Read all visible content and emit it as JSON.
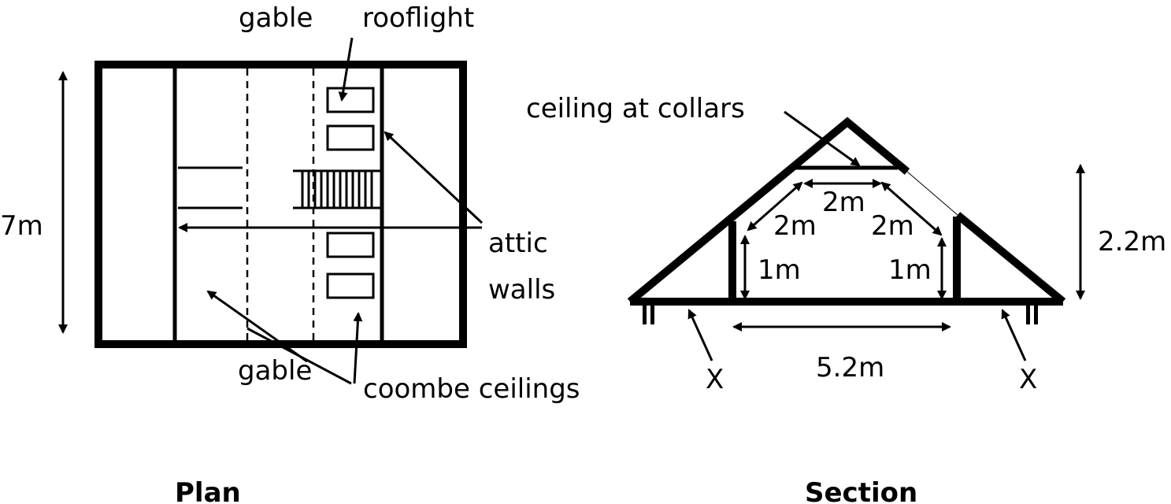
{
  "plan": {
    "title": "Plan",
    "label_gable_top": "gable",
    "label_rooflight": "rooflight",
    "label_width": "7m",
    "label_attic": "attic",
    "label_walls": "walls",
    "label_gable_bottom": "gable",
    "label_coombe": "coombe ceilings"
  },
  "section": {
    "title": "Section",
    "label_ceiling": "ceiling at collars",
    "label_collar_width": "2m",
    "label_left_slope": "2m",
    "label_right_slope": "2m",
    "label_left_wall": "1m",
    "label_right_wall": "1m",
    "label_height": "2.2m",
    "label_floor_width": "5.2m",
    "label_left_x": "X",
    "label_right_x": "X"
  }
}
